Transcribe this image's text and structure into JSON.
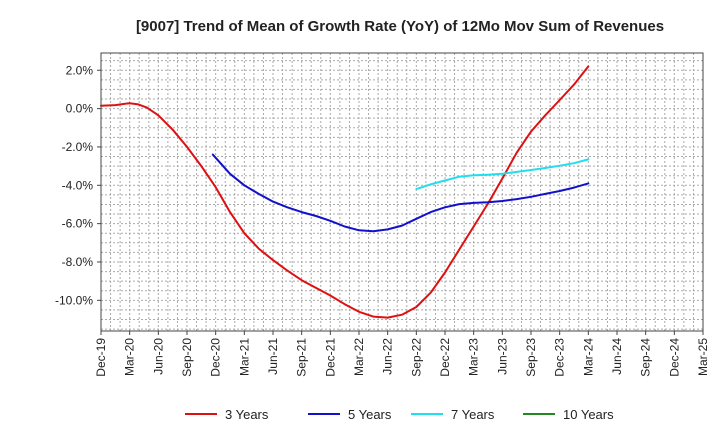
{
  "chart_data": {
    "type": "line",
    "title": "[9007]  Trend of Mean of Growth Rate (YoY) of 12Mo Mov Sum of Revenues",
    "xlabel": "",
    "ylabel": "",
    "x_ticks": [
      "Dec-19",
      "Mar-20",
      "Jun-20",
      "Sep-20",
      "Dec-20",
      "Mar-21",
      "Jun-21",
      "Sep-21",
      "Dec-21",
      "Mar-22",
      "Jun-22",
      "Sep-22",
      "Dec-22",
      "Mar-23",
      "Jun-23",
      "Sep-23",
      "Dec-23",
      "Mar-24",
      "Jun-24",
      "Sep-24",
      "Dec-24",
      "Mar-25"
    ],
    "y_ticks": [
      2.0,
      0.0,
      -2.0,
      -4.0,
      -6.0,
      -8.0,
      -10.0
    ],
    "y_tick_labels": [
      "2.0%",
      "0.0%",
      "-2.0%",
      "-4.0%",
      "-6.0%",
      "-8.0%",
      "-10.0%"
    ],
    "ylim": [
      -11.6,
      2.9
    ],
    "xlim": [
      0,
      21
    ],
    "grid": true,
    "legend_position": "bottom",
    "series": [
      {
        "name": "3 Years",
        "color": "#dd1111",
        "points": [
          [
            0,
            0.15
          ],
          [
            0.5,
            0.18
          ],
          [
            1,
            0.28
          ],
          [
            1.3,
            0.22
          ],
          [
            1.6,
            0.05
          ],
          [
            2,
            -0.35
          ],
          [
            2.5,
            -1.1
          ],
          [
            3,
            -2.0
          ],
          [
            3.5,
            -3.0
          ],
          [
            4,
            -4.1
          ],
          [
            4.5,
            -5.4
          ],
          [
            5,
            -6.5
          ],
          [
            5.5,
            -7.3
          ],
          [
            6,
            -7.9
          ],
          [
            6.5,
            -8.45
          ],
          [
            7,
            -8.95
          ],
          [
            7.5,
            -9.35
          ],
          [
            8,
            -9.75
          ],
          [
            8.5,
            -10.2
          ],
          [
            9,
            -10.6
          ],
          [
            9.5,
            -10.85
          ],
          [
            10,
            -10.9
          ],
          [
            10.5,
            -10.75
          ],
          [
            11,
            -10.35
          ],
          [
            11.5,
            -9.6
          ],
          [
            12,
            -8.55
          ],
          [
            12.5,
            -7.35
          ],
          [
            13,
            -6.15
          ],
          [
            13.5,
            -4.95
          ],
          [
            14,
            -3.65
          ],
          [
            14.5,
            -2.3
          ],
          [
            15,
            -1.2
          ],
          [
            15.5,
            -0.35
          ],
          [
            16,
            0.45
          ],
          [
            16.5,
            1.25
          ],
          [
            17,
            2.2
          ]
        ]
      },
      {
        "name": "5 Years",
        "color": "#1111cc",
        "points": [
          [
            3.9,
            -2.4
          ],
          [
            4.5,
            -3.4
          ],
          [
            5,
            -4.0
          ],
          [
            5.5,
            -4.45
          ],
          [
            6,
            -4.85
          ],
          [
            6.5,
            -5.15
          ],
          [
            7,
            -5.4
          ],
          [
            7.5,
            -5.6
          ],
          [
            8,
            -5.85
          ],
          [
            8.5,
            -6.15
          ],
          [
            9,
            -6.35
          ],
          [
            9.5,
            -6.4
          ],
          [
            10,
            -6.3
          ],
          [
            10.5,
            -6.1
          ],
          [
            11,
            -5.75
          ],
          [
            11.5,
            -5.4
          ],
          [
            12,
            -5.15
          ],
          [
            12.5,
            -4.98
          ],
          [
            13,
            -4.92
          ],
          [
            13.5,
            -4.88
          ],
          [
            14,
            -4.82
          ],
          [
            14.5,
            -4.72
          ],
          [
            15,
            -4.6
          ],
          [
            15.5,
            -4.45
          ],
          [
            16,
            -4.3
          ],
          [
            16.5,
            -4.12
          ],
          [
            17,
            -3.9
          ]
        ]
      },
      {
        "name": "7 Years",
        "color": "#22ddee",
        "points": [
          [
            11,
            -4.2
          ],
          [
            11.5,
            -3.95
          ],
          [
            12,
            -3.75
          ],
          [
            12.5,
            -3.55
          ],
          [
            13,
            -3.48
          ],
          [
            13.5,
            -3.45
          ],
          [
            14,
            -3.4
          ],
          [
            14.5,
            -3.3
          ],
          [
            15,
            -3.2
          ],
          [
            15.5,
            -3.1
          ],
          [
            16,
            -2.98
          ],
          [
            16.5,
            -2.85
          ],
          [
            17,
            -2.65
          ]
        ]
      },
      {
        "name": "10 Years",
        "color": "#228822",
        "points": []
      }
    ]
  }
}
